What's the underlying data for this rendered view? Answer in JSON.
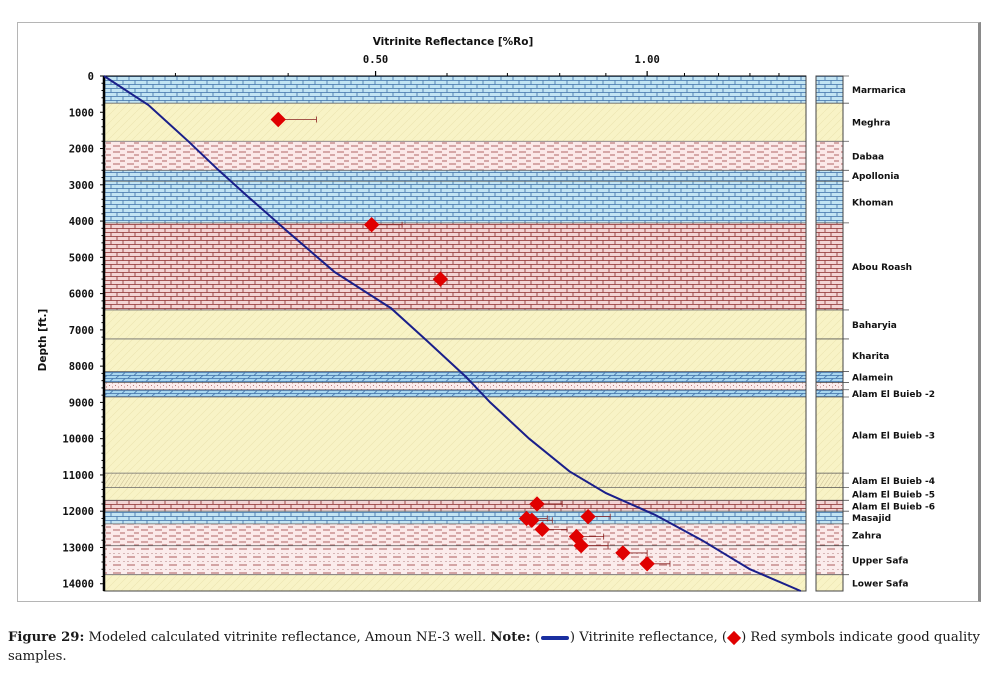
{
  "chart_data": {
    "type": "scatter",
    "title": "Vitrinite Reflectance [%Ro]",
    "xlabel": "Vitrinite Reflectance [%Ro]",
    "ylabel": "Depth [ft.]",
    "x_scale": "log",
    "xlim": [
      0.25,
      1.5
    ],
    "ylim": [
      0,
      14200
    ],
    "x_tick_labels": [
      {
        "value": 0.5,
        "label": "0.50"
      },
      {
        "value": 1.0,
        "label": "1.00"
      }
    ],
    "x_minor_ticks": [
      0.3,
      0.4,
      0.6,
      0.7,
      0.8,
      0.9,
      1.1,
      1.2,
      1.3,
      1.4
    ],
    "y_ticks": [
      {
        "value": 0,
        "label": "0"
      },
      {
        "value": 1000,
        "label": "1000"
      },
      {
        "value": 2000,
        "label": "2000"
      },
      {
        "value": 3000,
        "label": "3000"
      },
      {
        "value": 4000,
        "label": "4000"
      },
      {
        "value": 5000,
        "label": "5000"
      },
      {
        "value": 6000,
        "label": "6000"
      },
      {
        "value": 7000,
        "label": "7000"
      },
      {
        "value": 8000,
        "label": "8000"
      },
      {
        "value": 9000,
        "label": "9000"
      },
      {
        "value": 10000,
        "label": "10000"
      },
      {
        "value": 11000,
        "label": "11000"
      },
      {
        "value": 12000,
        "label": "12000"
      },
      {
        "value": 13000,
        "label": "13000"
      },
      {
        "value": 14000,
        "label": "14000"
      }
    ],
    "series": [
      {
        "name": "Vitrinite reflectance (modeled)",
        "kind": "line",
        "color": "#1a1f8a",
        "points": [
          [
            0.25,
            0
          ],
          [
            0.28,
            800
          ],
          [
            0.31,
            1800
          ],
          [
            0.335,
            2600
          ],
          [
            0.36,
            3300
          ],
          [
            0.4,
            4300
          ],
          [
            0.45,
            5400
          ],
          [
            0.52,
            6400
          ],
          [
            0.57,
            7300
          ],
          [
            0.63,
            8300
          ],
          [
            0.67,
            9000
          ],
          [
            0.74,
            10000
          ],
          [
            0.82,
            10900
          ],
          [
            0.9,
            11500
          ],
          [
            1.02,
            12100
          ],
          [
            1.15,
            12800
          ],
          [
            1.3,
            13600
          ],
          [
            1.48,
            14200
          ]
        ]
      },
      {
        "name": "Measured Ro (good quality samples)",
        "kind": "scatter",
        "color": "#e00000",
        "points": [
          {
            "x": 0.39,
            "y": 1200,
            "err": 0.04
          },
          {
            "x": 0.495,
            "y": 4100,
            "err": 0.04
          },
          {
            "x": 0.59,
            "y": 5600,
            "err": 0.0
          },
          {
            "x": 0.755,
            "y": 11800,
            "err": 0.05
          },
          {
            "x": 0.735,
            "y": 12200,
            "err": 0.04
          },
          {
            "x": 0.745,
            "y": 12250,
            "err": 0.04
          },
          {
            "x": 0.86,
            "y": 12150,
            "err": 0.05
          },
          {
            "x": 0.765,
            "y": 12500,
            "err": 0.05
          },
          {
            "x": 0.835,
            "y": 12700,
            "err": 0.06
          },
          {
            "x": 0.845,
            "y": 12950,
            "err": 0.06
          },
          {
            "x": 0.94,
            "y": 13150,
            "err": 0.06
          },
          {
            "x": 1.0,
            "y": 13450,
            "err": 0.06
          }
        ]
      }
    ],
    "formations": [
      {
        "name": "Marmarica",
        "top": 0,
        "base": 750,
        "lith": "limestone"
      },
      {
        "name": "Meghra",
        "top": 750,
        "base": 1800,
        "lith": "sand"
      },
      {
        "name": "Dabaa",
        "top": 1800,
        "base": 2600,
        "lith": "shale"
      },
      {
        "name": "Apollonia",
        "top": 2600,
        "base": 2900,
        "lith": "limestone"
      },
      {
        "name": "Khoman",
        "top": 2900,
        "base": 4050,
        "lith": "limestone"
      },
      {
        "name": "Abou Roash",
        "top": 4050,
        "base": 6450,
        "lith": "shaly-limestone"
      },
      {
        "name": "Baharyia",
        "top": 6450,
        "base": 7250,
        "lith": "sand"
      },
      {
        "name": "Kharita",
        "top": 7250,
        "base": 8150,
        "lith": "sand"
      },
      {
        "name": "Alamein",
        "top": 8150,
        "base": 8450,
        "lith": "dolomite"
      },
      {
        "name": "",
        "top": 8450,
        "base": 8650,
        "lith": "silt"
      },
      {
        "name": "Alam El Buieb -2",
        "top": 8650,
        "base": 8850,
        "lith": "dolomite"
      },
      {
        "name": "Alam El Buieb -3",
        "top": 8850,
        "base": 10950,
        "lith": "sand"
      },
      {
        "name": "Alam El Buieb -4",
        "top": 10950,
        "base": 11350,
        "lith": "sandy-hatch"
      },
      {
        "name": "Alam El Buieb -5",
        "top": 11350,
        "base": 11700,
        "lith": "sand"
      },
      {
        "name": "Alam El Buieb -6",
        "top": 11700,
        "base": 12000,
        "lith": "shaly-limestone"
      },
      {
        "name": "Masajid",
        "top": 12000,
        "base": 12350,
        "lith": "limestone"
      },
      {
        "name": "Zahra",
        "top": 12350,
        "base": 12950,
        "lith": "shale"
      },
      {
        "name": "Upper Safa",
        "top": 12950,
        "base": 13750,
        "lith": "silty-shale"
      },
      {
        "name": "Lower Safa",
        "top": 13750,
        "base": 14200,
        "lith": "sand"
      }
    ]
  },
  "caption": {
    "figure_label": "Figure 29:",
    "text_1": " Modeled calculated vitrinite reflectance, Amoun NE-3 well. ",
    "note_label": "Note:",
    "text_2": " (",
    "text_3": ") Vitrinite reflectance, (",
    "text_4": ") Red symbols indicate good quality samples."
  },
  "colors": {
    "limestone": "#bfe3f2",
    "sand": "#f8f3c6",
    "shale": "#f9e4e4",
    "line": "#1a1f8a",
    "marker": "#e00000"
  }
}
